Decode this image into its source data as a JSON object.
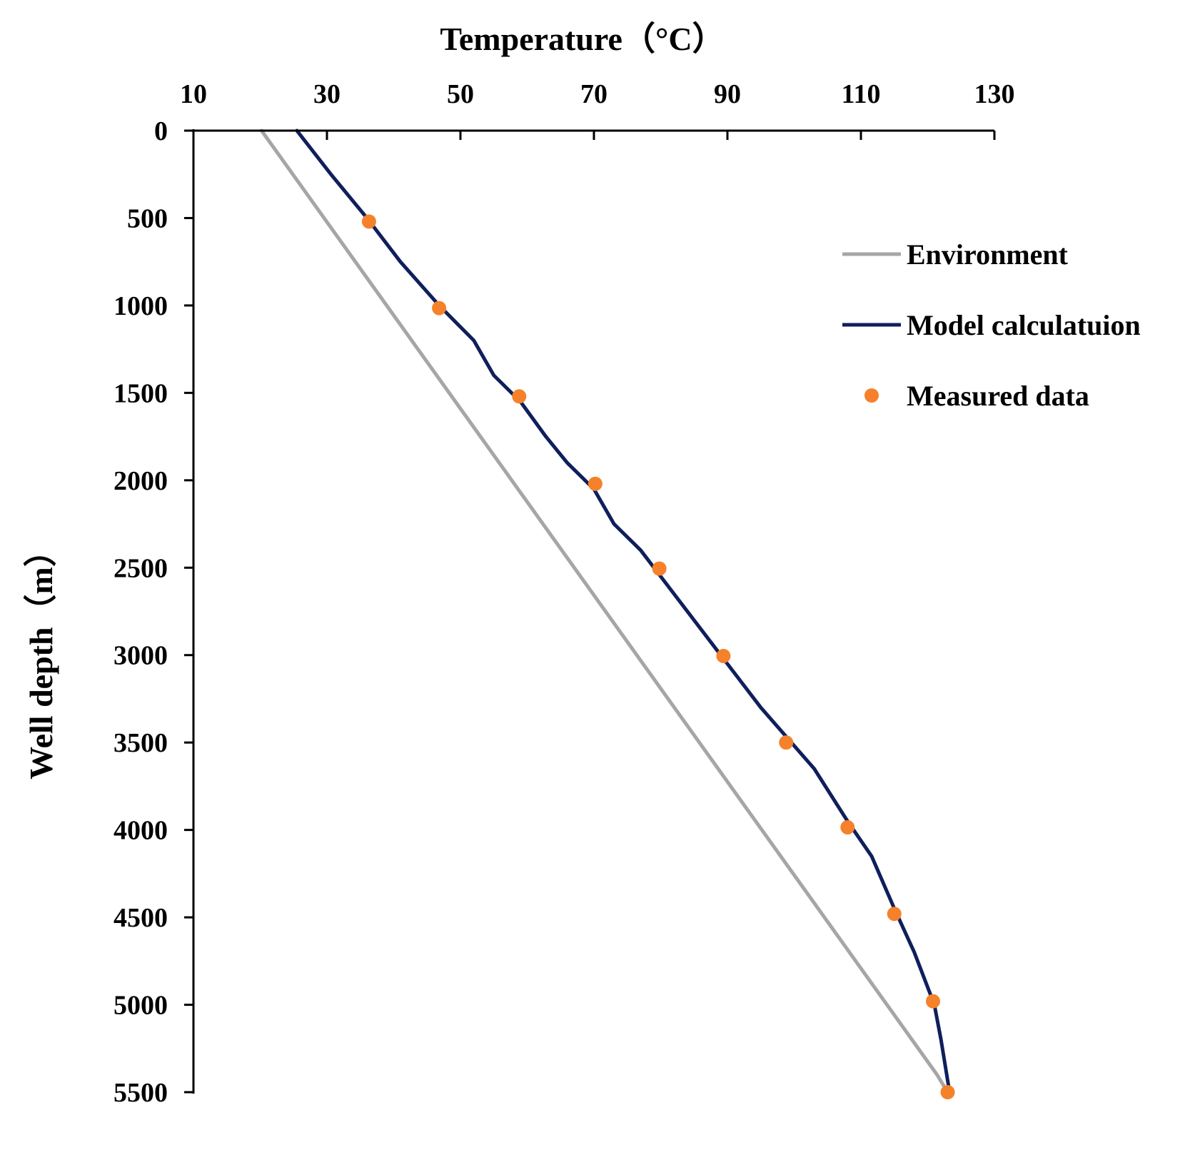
{
  "chart_data": {
    "type": "line",
    "title": "",
    "xlabel": "Temperature（°C）",
    "ylabel": "Well depth（m）",
    "xlim": [
      10,
      130
    ],
    "ylim": [
      0,
      5500
    ],
    "y_inverted": true,
    "x_axis_position": "top",
    "xticks": [
      10,
      30,
      50,
      70,
      90,
      110,
      130
    ],
    "yticks": [
      0,
      500,
      1000,
      1500,
      2000,
      2500,
      3000,
      3500,
      4000,
      4500,
      5000,
      5500
    ],
    "grid": false,
    "legend_position": "top-right",
    "series": [
      {
        "name": "Environment",
        "kind": "line",
        "color": "#a6a6a6",
        "points": [
          [
            20.2,
            0
          ],
          [
            121.4,
            5400
          ],
          [
            123.0,
            5500
          ]
        ]
      },
      {
        "name": "Model calculatuion",
        "kind": "line",
        "color": "#0f1f5c",
        "points": [
          [
            25.5,
            0
          ],
          [
            30.6,
            250
          ],
          [
            36.0,
            500
          ],
          [
            41.0,
            750
          ],
          [
            46.8,
            1000
          ],
          [
            52.0,
            1200
          ],
          [
            55.0,
            1400
          ],
          [
            59.0,
            1550
          ],
          [
            62.8,
            1750
          ],
          [
            66.0,
            1900
          ],
          [
            70.0,
            2050
          ],
          [
            73.0,
            2250
          ],
          [
            77.0,
            2400
          ],
          [
            80.0,
            2550
          ],
          [
            84.0,
            2750
          ],
          [
            89.0,
            3000
          ],
          [
            95.0,
            3300
          ],
          [
            103.0,
            3650
          ],
          [
            108.0,
            3950
          ],
          [
            111.6,
            4150
          ],
          [
            115.0,
            4450
          ],
          [
            118.0,
            4700
          ],
          [
            121.0,
            5000
          ],
          [
            122.0,
            5200
          ],
          [
            123.2,
            5480
          ]
        ]
      },
      {
        "name": "Measured data",
        "kind": "scatter",
        "color": "#f5812b",
        "points": [
          [
            36.3,
            520
          ],
          [
            46.8,
            1015
          ],
          [
            58.8,
            1520
          ],
          [
            70.2,
            2020
          ],
          [
            79.8,
            2505
          ],
          [
            89.4,
            3005
          ],
          [
            98.8,
            3500
          ],
          [
            108.0,
            3985
          ],
          [
            115.0,
            4480
          ],
          [
            120.8,
            4980
          ],
          [
            123.0,
            5500
          ]
        ]
      }
    ]
  }
}
